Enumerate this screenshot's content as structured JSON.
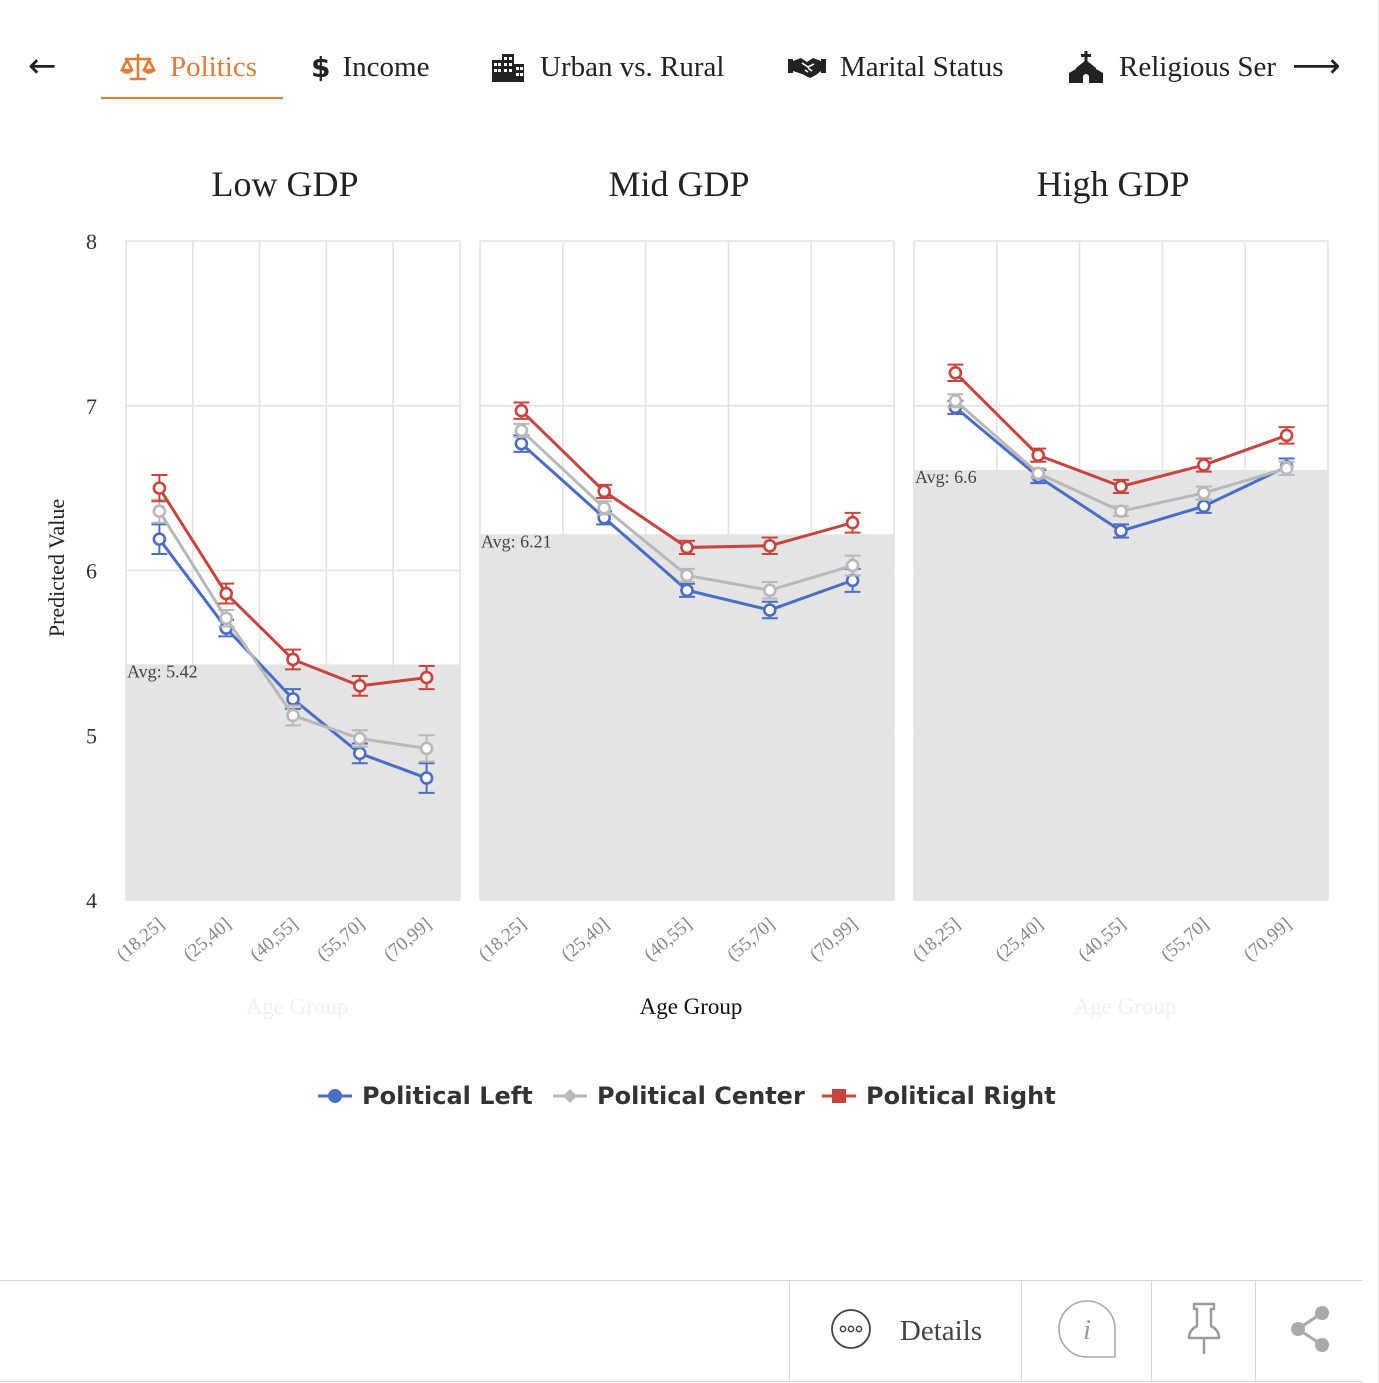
{
  "nav": {
    "prev_arrow": "←",
    "next_arrow": "⟶",
    "tabs": [
      {
        "label": "Politics",
        "icon": "balance-scale-icon",
        "active": true
      },
      {
        "label": "Income",
        "icon": "dollar-icon",
        "active": false
      },
      {
        "label": "Urban vs. Rural",
        "icon": "city-icon",
        "active": false
      },
      {
        "label": "Marital Status",
        "icon": "handshake-icon",
        "active": false
      },
      {
        "label": "Religious Ser",
        "icon": "church-icon",
        "active": false
      }
    ]
  },
  "colors": {
    "accent": "#e07b39",
    "left": "#4a6ec4",
    "center": "#b8b8b8",
    "right": "#c8443f",
    "avg_band": "#e4e4e4",
    "grid": "#e2e2e2"
  },
  "chart_data": {
    "type": "line",
    "ylabel": "Predicted Value",
    "xlabel": "Age Group",
    "ylim": [
      4,
      8
    ],
    "yticks": [
      "4",
      "5",
      "6",
      "7",
      "8"
    ],
    "categories": [
      "(18,25]",
      "(25,40]",
      "(40,55]",
      "(55,70]",
      "(70,99]"
    ],
    "legend_position": "bottom-center",
    "legend": [
      "Political Left",
      "Political Center",
      "Political Right"
    ],
    "panels": [
      {
        "title": "Low GDP",
        "avg_label": "Avg: 5.42",
        "avg": 5.43,
        "series": [
          {
            "name": "Political Left",
            "values": [
              6.19,
              5.65,
              5.22,
              4.89,
              4.74
            ],
            "err": [
              0.09,
              0.05,
              0.06,
              0.06,
              0.09
            ]
          },
          {
            "name": "Political Center",
            "values": [
              6.36,
              5.71,
              5.12,
              4.98,
              4.92
            ],
            "err": [
              0.07,
              0.05,
              0.06,
              0.05,
              0.08
            ]
          },
          {
            "name": "Political Right",
            "values": [
              6.5,
              5.86,
              5.46,
              5.3,
              5.35
            ],
            "err": [
              0.08,
              0.06,
              0.06,
              0.06,
              0.07
            ]
          }
        ]
      },
      {
        "title": "Mid GDP",
        "avg_label": "Avg: 6.21",
        "avg": 6.22,
        "series": [
          {
            "name": "Political Left",
            "values": [
              6.77,
              6.32,
              5.88,
              5.76,
              5.94
            ],
            "err": [
              0.05,
              0.04,
              0.04,
              0.05,
              0.07
            ]
          },
          {
            "name": "Political Center",
            "values": [
              6.85,
              6.38,
              5.97,
              5.88,
              6.03
            ],
            "err": [
              0.04,
              0.04,
              0.04,
              0.05,
              0.06
            ]
          },
          {
            "name": "Political Right",
            "values": [
              6.97,
              6.48,
              6.14,
              6.15,
              6.29
            ],
            "err": [
              0.05,
              0.04,
              0.04,
              0.05,
              0.06
            ]
          }
        ]
      },
      {
        "title": "High GDP",
        "avg_label": "Avg: 6.6",
        "avg": 6.61,
        "series": [
          {
            "name": "Political Left",
            "values": [
              6.99,
              6.57,
              6.24,
              6.39,
              6.63
            ],
            "err": [
              0.04,
              0.04,
              0.04,
              0.04,
              0.05
            ]
          },
          {
            "name": "Political Center",
            "values": [
              7.03,
              6.59,
              6.36,
              6.47,
              6.62
            ],
            "err": [
              0.04,
              0.03,
              0.03,
              0.04,
              0.04
            ]
          },
          {
            "name": "Political Right",
            "values": [
              7.2,
              6.7,
              6.51,
              6.64,
              6.82
            ],
            "err": [
              0.05,
              0.04,
              0.04,
              0.04,
              0.05
            ]
          }
        ]
      }
    ]
  },
  "footer": {
    "details_label": "Details"
  }
}
